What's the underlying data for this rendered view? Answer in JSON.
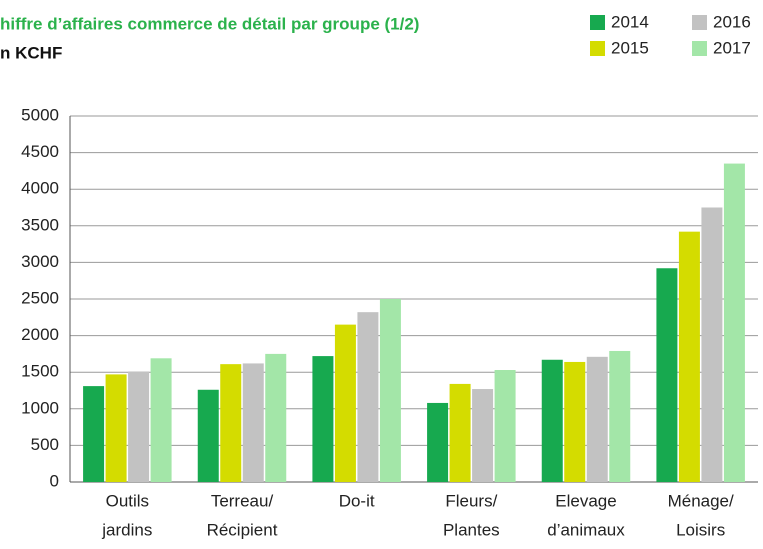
{
  "chart_data": {
    "type": "bar",
    "title": "hiffre d’affaires commerce de détail par groupe (1/2)",
    "subtitle": "n KCHF",
    "categories": [
      [
        "Outils",
        "jardins"
      ],
      [
        "Terreau/",
        "Récipient"
      ],
      [
        "Do-it"
      ],
      [
        "Fleurs/",
        "Plantes"
      ],
      [
        "Elevage",
        "d’animaux"
      ],
      [
        "Ménage/",
        "Loisirs"
      ]
    ],
    "series": [
      {
        "name": "2014",
        "color": "#17a94f",
        "values": [
          1310,
          1260,
          1720,
          1080,
          1670,
          2920
        ]
      },
      {
        "name": "2015",
        "color": "#d4dc00",
        "values": [
          1470,
          1610,
          2150,
          1340,
          1640,
          3420
        ]
      },
      {
        "name": "2016",
        "color": "#c2c2c2",
        "values": [
          1510,
          1620,
          2320,
          1270,
          1710,
          3750
        ]
      },
      {
        "name": "2017",
        "color": "#a3e6a8",
        "values": [
          1690,
          1750,
          2500,
          1530,
          1790,
          4350
        ]
      }
    ],
    "ylim": [
      0,
      5000
    ],
    "yticks": [
      0,
      500,
      1000,
      1500,
      2000,
      2500,
      3000,
      3500,
      4000,
      4500,
      5000
    ],
    "grid": true,
    "legend": "top-right"
  }
}
